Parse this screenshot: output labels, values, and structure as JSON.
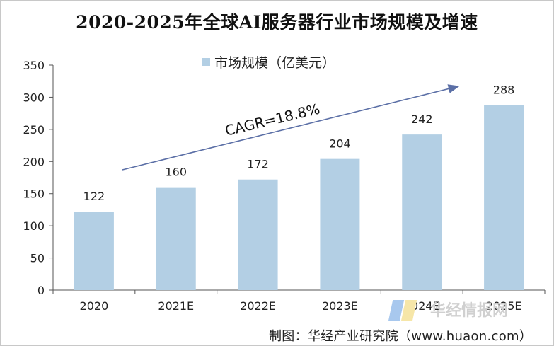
{
  "chart_data": {
    "type": "bar",
    "title": "2020-2025年全球AI服务器行业市场规模及增速",
    "legend": "市场规模（亿美元）",
    "categories": [
      "2020",
      "2021E",
      "2022E",
      "2023E",
      "2024E",
      "2025E"
    ],
    "series": [
      {
        "name": "市场规模（亿美元）",
        "values": [
          122,
          160,
          172,
          204,
          242,
          288
        ]
      }
    ],
    "ylim": [
      0,
      350
    ],
    "yticks": [
      0,
      50,
      100,
      150,
      200,
      250,
      300,
      350
    ],
    "annotation": "CAGR=18.8%",
    "bar_color": "#b3cfe4",
    "arrow_color": "#5b6fa6",
    "grid": false
  },
  "footer": "制图：华经产业研究院（www.huaon.com）",
  "watermark": "华经情报网"
}
